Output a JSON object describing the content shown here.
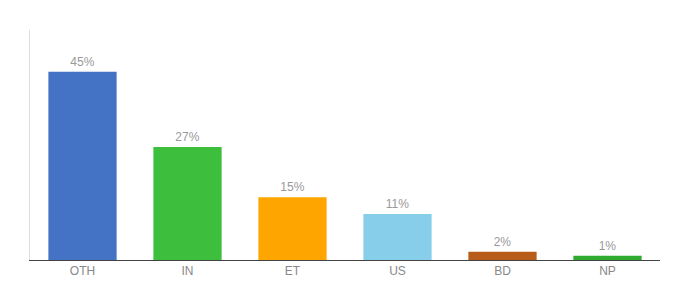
{
  "chart_data": {
    "type": "bar",
    "categories": [
      "OTH",
      "IN",
      "ET",
      "US",
      "BD",
      "NP"
    ],
    "values": [
      45,
      27,
      15,
      11,
      2,
      1
    ],
    "value_labels": [
      "45%",
      "27%",
      "15%",
      "11%",
      "2%",
      "1%"
    ],
    "colors": [
      "#4472C4",
      "#3DBE3D",
      "#FFA500",
      "#87CEEB",
      "#B85C1A",
      "#2EAA2E"
    ],
    "data_labels": true,
    "ylim": [
      0,
      55
    ],
    "tick_labels": "x",
    "grid": false
  }
}
